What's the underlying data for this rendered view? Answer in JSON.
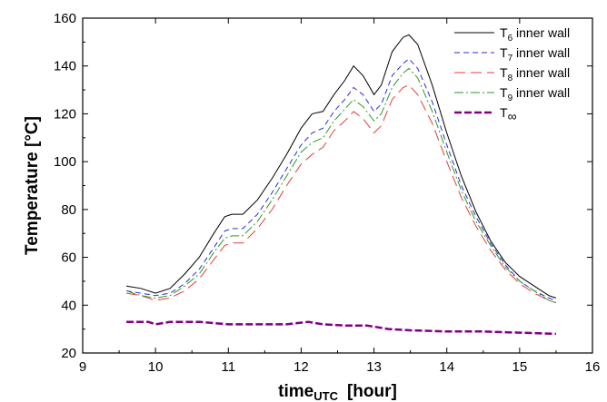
{
  "chart_data": {
    "type": "line",
    "title": "",
    "xlabel": "time",
    "xlabel_subscript": "UTC",
    "xlabel_unit": "[hour]",
    "ylabel": "Temperature [°C]",
    "xlim": [
      9,
      16
    ],
    "ylim": [
      20,
      160
    ],
    "xticks": [
      9,
      10,
      11,
      12,
      13,
      14,
      15,
      16
    ],
    "yticks": [
      20,
      40,
      60,
      80,
      100,
      120,
      140,
      160
    ],
    "grid": false,
    "legend_position": "top-right",
    "series": [
      {
        "name": "T6 inner wall",
        "legend_main": "T",
        "legend_sub": "6",
        "legend_suffix": " inner wall",
        "color": "#000000",
        "dash": "",
        "x": [
          9.6,
          9.8,
          10.0,
          10.2,
          10.4,
          10.6,
          10.8,
          10.95,
          11.05,
          11.2,
          11.4,
          11.6,
          11.8,
          12.0,
          12.15,
          12.3,
          12.45,
          12.6,
          12.72,
          12.85,
          13.0,
          13.1,
          13.25,
          13.4,
          13.48,
          13.6,
          13.8,
          14.0,
          14.2,
          14.4,
          14.6,
          14.8,
          15.0,
          15.2,
          15.4,
          15.5
        ],
        "y": [
          48,
          47,
          45,
          47,
          53,
          60,
          70,
          77,
          78,
          78,
          84,
          93,
          103,
          114,
          120,
          121,
          128,
          134,
          140,
          136,
          128,
          132,
          146,
          152,
          153,
          149,
          132,
          112,
          94,
          79,
          67,
          58,
          52,
          48,
          44,
          43
        ]
      },
      {
        "name": "T7 inner wall",
        "legend_main": "T",
        "legend_sub": "7",
        "legend_suffix": " inner wall",
        "color": "#2b2bd9",
        "dash": "6,4",
        "x": [
          9.6,
          9.8,
          10.0,
          10.2,
          10.4,
          10.6,
          10.8,
          10.95,
          11.05,
          11.2,
          11.4,
          11.6,
          11.8,
          12.0,
          12.15,
          12.3,
          12.45,
          12.6,
          12.72,
          12.85,
          13.0,
          13.1,
          13.25,
          13.4,
          13.48,
          13.6,
          13.8,
          14.0,
          14.2,
          14.4,
          14.6,
          14.8,
          15.0,
          15.2,
          15.4,
          15.5
        ],
        "y": [
          46,
          45,
          44,
          45,
          49,
          55,
          64,
          71,
          72,
          72,
          78,
          87,
          97,
          107,
          112,
          114,
          121,
          126,
          131,
          128,
          121,
          124,
          136,
          141,
          143,
          139,
          125,
          107,
          90,
          77,
          66,
          57,
          50,
          46,
          43,
          42
        ]
      },
      {
        "name": "T8 inner wall",
        "legend_main": "T",
        "legend_sub": "8",
        "legend_suffix": " inner wall",
        "color": "#e83a3a",
        "dash": "12,6",
        "x": [
          9.6,
          9.8,
          10.0,
          10.2,
          10.4,
          10.6,
          10.8,
          10.95,
          11.05,
          11.2,
          11.4,
          11.6,
          11.8,
          12.0,
          12.15,
          12.3,
          12.45,
          12.6,
          12.72,
          12.85,
          13.0,
          13.1,
          13.25,
          13.4,
          13.48,
          13.6,
          13.8,
          14.0,
          14.2,
          14.4,
          14.6,
          14.8,
          15.0,
          15.2,
          15.4,
          15.5
        ],
        "y": [
          45,
          44,
          42,
          43,
          46,
          51,
          59,
          65,
          66,
          66,
          72,
          80,
          90,
          99,
          103,
          106,
          113,
          117,
          121,
          118,
          112,
          115,
          126,
          131,
          132,
          128,
          116,
          100,
          85,
          73,
          63,
          55,
          49,
          45,
          42,
          41
        ]
      },
      {
        "name": "T9 inner wall",
        "legend_main": "T",
        "legend_sub": "9",
        "legend_suffix": " inner wall",
        "color": "#2a9a2a",
        "dash": "10,3,2,3",
        "x": [
          9.6,
          9.8,
          10.0,
          10.2,
          10.4,
          10.6,
          10.8,
          10.95,
          11.05,
          11.2,
          11.4,
          11.6,
          11.8,
          12.0,
          12.15,
          12.3,
          12.45,
          12.6,
          12.72,
          12.85,
          13.0,
          13.1,
          13.25,
          13.4,
          13.48,
          13.6,
          13.8,
          14.0,
          14.2,
          14.4,
          14.6,
          14.8,
          15.0,
          15.2,
          15.4,
          15.5
        ],
        "y": [
          46,
          44,
          43,
          44,
          48,
          53,
          62,
          68,
          69,
          69,
          75,
          84,
          94,
          104,
          108,
          110,
          117,
          122,
          126,
          123,
          117,
          120,
          131,
          137,
          139,
          135,
          121,
          104,
          88,
          75,
          65,
          56,
          50,
          46,
          42,
          41
        ]
      },
      {
        "name": "T∞",
        "legend_main": "T",
        "legend_sub": "∞",
        "legend_suffix": "",
        "color": "#800080",
        "dash": "8,3",
        "x": [
          9.6,
          9.9,
          10.0,
          10.2,
          10.6,
          11.0,
          11.4,
          11.8,
          12.1,
          12.3,
          12.6,
          12.9,
          13.2,
          13.5,
          14.0,
          14.5,
          15.0,
          15.5
        ],
        "y": [
          33,
          33,
          32,
          33,
          33,
          32,
          32,
          32,
          33,
          32,
          31.5,
          31.5,
          30,
          29.5,
          29,
          29,
          28.5,
          28
        ]
      }
    ]
  }
}
